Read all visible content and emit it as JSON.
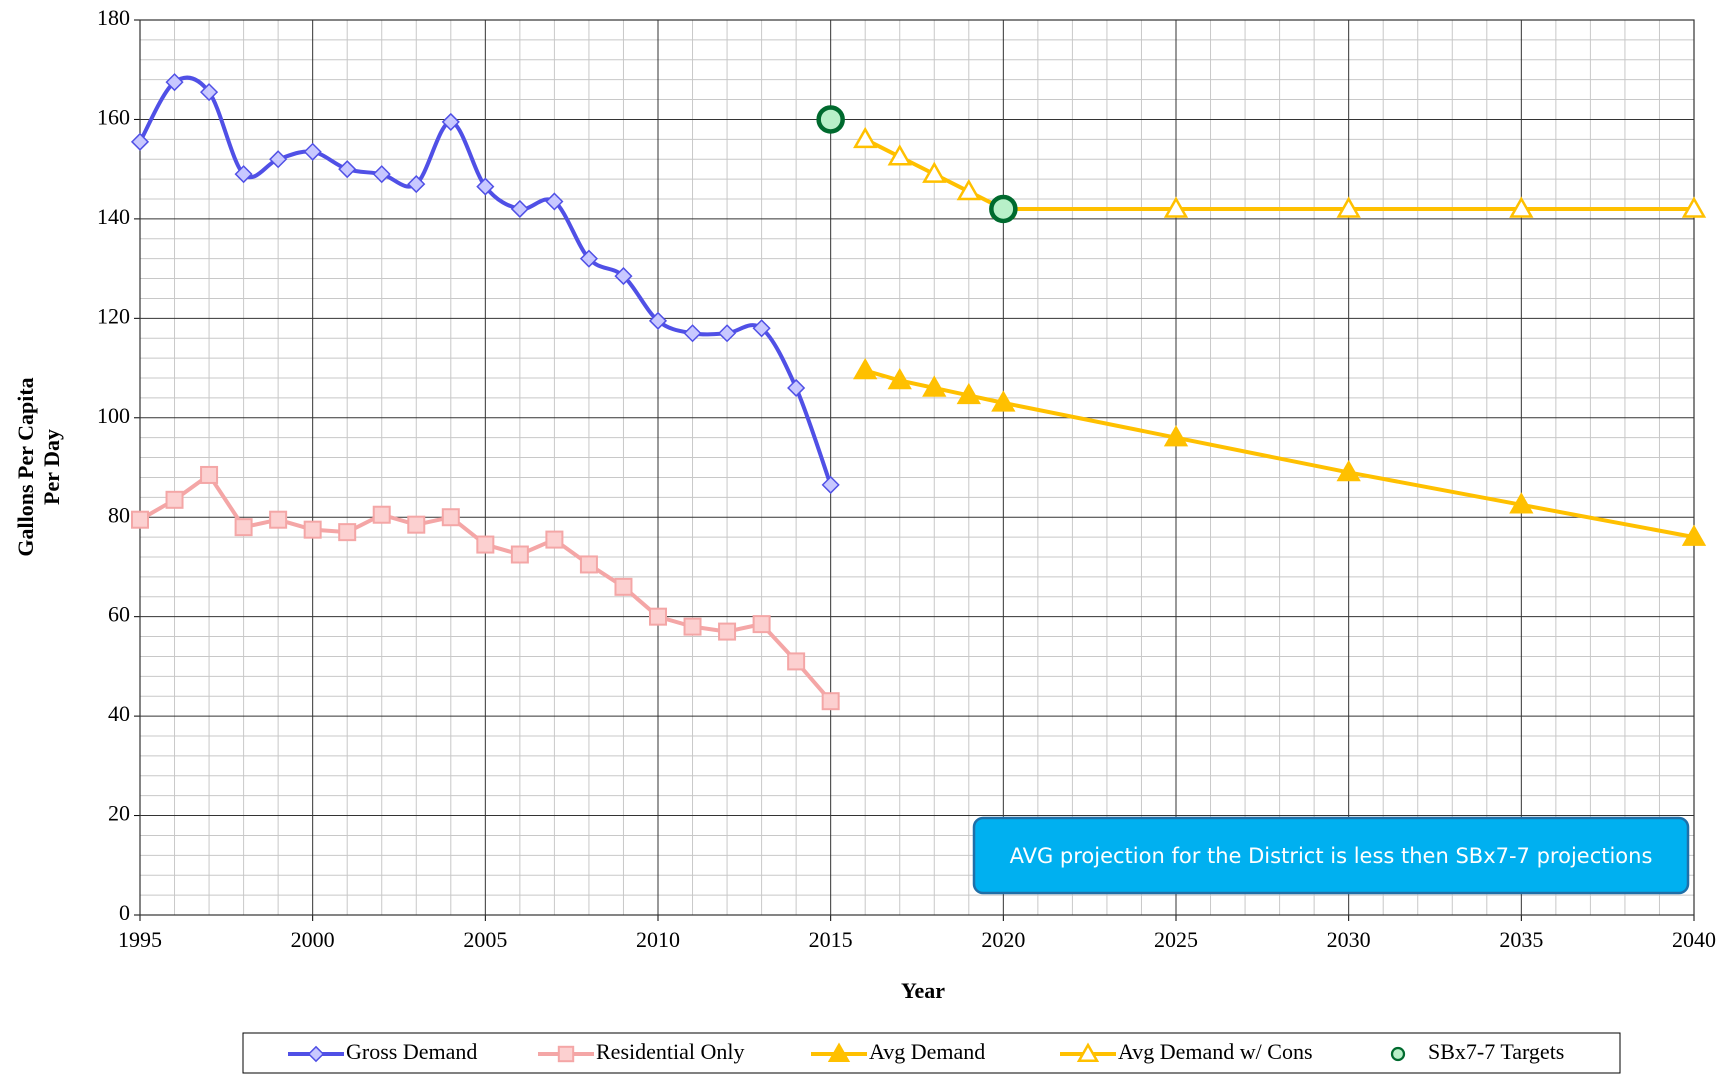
{
  "chart_data": {
    "type": "line",
    "xlabel": "Year",
    "ylabel": [
      "Gallons Per Capita",
      "Per Day"
    ],
    "xlim": [
      1995,
      2040
    ],
    "xticks": [
      1995,
      2000,
      2005,
      2010,
      2015,
      2020,
      2025,
      2030,
      2035,
      2040
    ],
    "ylim": [
      0,
      180
    ],
    "yticks": [
      0,
      20,
      40,
      60,
      80,
      100,
      120,
      140,
      160,
      180
    ],
    "grid": true,
    "legend": "bottom",
    "annotation": "AVG projection for the District is less then SBx7-7 projections",
    "series": [
      {
        "name": "Gross Demand",
        "color": "#5050e6",
        "marker": "diamond",
        "marker_fill": "#c8c8ff",
        "smooth": true,
        "x": [
          1995,
          1996,
          1997,
          1998,
          1999,
          2000,
          2001,
          2002,
          2003,
          2004,
          2005,
          2006,
          2007,
          2008,
          2009,
          2010,
          2011,
          2012,
          2013,
          2014,
          2015
        ],
        "values": [
          155.5,
          167.5,
          165.5,
          149,
          152,
          153.5,
          150,
          149,
          147,
          159.5,
          146.5,
          142,
          143.5,
          132,
          128.5,
          119.5,
          117,
          117,
          118,
          106,
          86.5
        ]
      },
      {
        "name": "Residential Only",
        "color": "#f4a6a6",
        "marker": "square",
        "marker_fill": "#fcd0d0",
        "x": [
          1995,
          1996,
          1997,
          1998,
          1999,
          2000,
          2001,
          2002,
          2003,
          2004,
          2005,
          2006,
          2007,
          2008,
          2009,
          2010,
          2011,
          2012,
          2013,
          2014,
          2015
        ],
        "values": [
          79.5,
          83.5,
          88.5,
          78,
          79.5,
          77.5,
          77,
          80.5,
          78.5,
          80,
          74.5,
          72.5,
          75.5,
          70.5,
          66,
          60,
          58,
          57,
          58.5,
          51,
          43
        ]
      },
      {
        "name": "Avg Demand",
        "color": "#ffc000",
        "marker": "triangle",
        "marker_fill": "#ffc000",
        "x": [
          2016,
          2017,
          2018,
          2019,
          2020,
          2025,
          2030,
          2035,
          2040
        ],
        "values": [
          109.5,
          107.5,
          106,
          104.5,
          103,
          96,
          89,
          82.5,
          76
        ]
      },
      {
        "name": "Avg Demand w/ Cons",
        "color": "#ffc000",
        "marker": "triangle",
        "marker_fill": "#ffffff",
        "x": [
          2016,
          2017,
          2018,
          2019,
          2020,
          2025,
          2030,
          2035,
          2040
        ],
        "values": [
          156,
          152.5,
          149,
          145.5,
          142,
          142,
          142,
          142,
          142
        ]
      },
      {
        "name": "SBx7-7 Targets",
        "color": "#006a2e",
        "marker": "circle",
        "marker_fill": "#b8f0c8",
        "line": false,
        "x": [
          2015,
          2020
        ],
        "values": [
          160,
          142
        ]
      }
    ]
  }
}
